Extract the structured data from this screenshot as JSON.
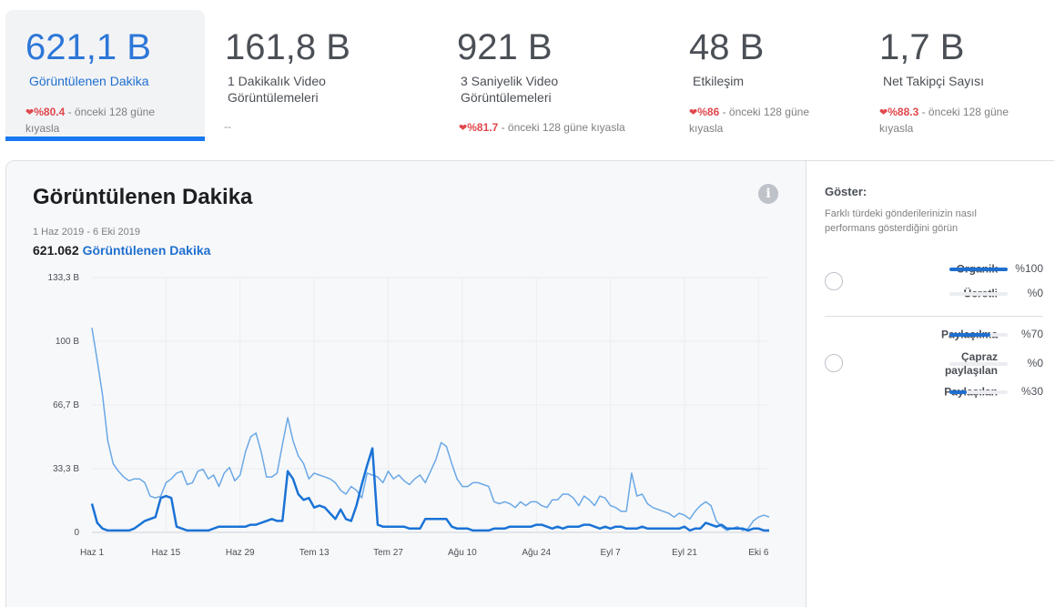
{
  "metrics": [
    {
      "value": "621,1 B",
      "label": "Görüntülenen Dakika",
      "pct": "%80.4",
      "suffix": " - önceki 128 güne kıyasla",
      "active": true
    },
    {
      "value": "161,8 B",
      "label": "1 Dakikalık Video Görüntülemeleri",
      "dash": "--"
    },
    {
      "value": "921 B",
      "label": "3 Saniyelik Video Görüntülemeleri",
      "pct": "%81.7",
      "suffix": " - önceki 128 güne kıyasla"
    },
    {
      "value": "48 B",
      "label": "Etkileşim",
      "pct": "%86",
      "suffix": " - önceki 128 güne kıyasla"
    },
    {
      "value": "1,7 B",
      "label": "Net Takipçi Sayısı",
      "pct": "%88.3",
      "suffix": " - önceki 128 güne kıyasla"
    }
  ],
  "chart_panel": {
    "title": "Görüntülenen Dakika",
    "info_icon": "info-icon",
    "date_range": "1 Haz 2019 - 6 Eki 2019",
    "total_value": "621.062",
    "total_label": "Görüntülenen Dakika"
  },
  "side_panel": {
    "title": "Göster:",
    "description": "Farklı türdeki gönderilerinizin nasıl performans gösterdiğini görün",
    "group1": [
      {
        "label": "Organik",
        "percent_text": "%100",
        "value": 1.0
      },
      {
        "label": "Ücretli",
        "percent_text": "%0",
        "value": 0.0
      }
    ],
    "group2": [
      {
        "label": "Paylaşılma",
        "percent_text": "%70",
        "value": 0.7
      },
      {
        "label": "Çapraz paylaşılan",
        "percent_text": "%0",
        "value": 0.0
      },
      {
        "label": "Paylaşılan",
        "percent_text": "%30",
        "value": 0.3
      }
    ]
  },
  "colors": {
    "accent": "#1877f2",
    "series_dark": "#1a73d6",
    "series_light": "#6aa8e6",
    "negative": "#e0474c"
  },
  "chart_data": {
    "type": "line",
    "ylim": [
      0,
      133.3
    ],
    "yticks": [
      "0",
      "33,3 B",
      "66,7 B",
      "100 B",
      "133,3 B"
    ],
    "ytick_values": [
      0,
      33.3,
      66.7,
      100,
      133.3
    ],
    "xticks": [
      "Haz 1",
      "Haz 15",
      "Haz 29",
      "Tem 13",
      "Tem 27",
      "Ağu 10",
      "Ağu 24",
      "Eyl 7",
      "Eyl 21",
      "Eki 6"
    ],
    "x_start": "2019-06-01",
    "x_end": "2019-10-06",
    "series": [
      {
        "values": [
          107,
          90,
          72,
          48,
          36,
          32,
          29,
          27,
          28,
          28,
          26,
          19,
          18,
          19,
          26,
          28,
          31,
          32,
          25,
          26,
          32,
          33,
          28,
          30,
          24,
          31,
          34,
          27,
          30,
          42,
          50,
          52,
          42,
          29,
          29,
          31,
          46,
          60,
          48,
          40,
          36,
          28,
          31,
          30,
          29,
          28,
          26,
          22,
          20,
          24,
          22,
          18,
          31,
          30,
          29,
          26,
          32,
          28,
          30,
          27,
          25,
          28,
          30,
          26,
          32,
          38,
          47,
          45,
          36,
          28,
          24,
          24,
          26,
          26,
          25,
          24,
          16,
          15,
          16,
          15,
          13,
          16,
          14,
          16,
          16,
          14,
          13,
          17,
          17,
          20,
          20,
          18,
          14,
          19,
          17,
          14,
          19,
          18,
          14,
          13,
          11,
          11,
          31,
          19,
          20,
          15,
          13,
          12,
          11,
          10,
          8,
          10,
          9,
          7,
          11,
          14,
          16,
          14,
          6,
          3,
          1,
          2,
          3,
          1,
          2,
          6,
          8,
          9,
          8
        ]
      },
      {
        "values": [
          15,
          5,
          2,
          1,
          1,
          1,
          1,
          1,
          2,
          4,
          6,
          7,
          8,
          18,
          19,
          18,
          3,
          2,
          1,
          1,
          1,
          1,
          1,
          2,
          3,
          3,
          3,
          3,
          3,
          3,
          4,
          4,
          5,
          6,
          7,
          6,
          6,
          32,
          28,
          20,
          17,
          18,
          13,
          14,
          13,
          10,
          7,
          12,
          7,
          6,
          14,
          25,
          35,
          44,
          4,
          3,
          3,
          3,
          3,
          3,
          2,
          2,
          2,
          7,
          7,
          7,
          7,
          7,
          3,
          2,
          2,
          2,
          1,
          1,
          1,
          1,
          2,
          2,
          2,
          3,
          3,
          3,
          3,
          3,
          4,
          4,
          3,
          2,
          3,
          2,
          3,
          3,
          3,
          4,
          4,
          3,
          2,
          3,
          2,
          3,
          3,
          2,
          2,
          2,
          3,
          2,
          2,
          2,
          2,
          2,
          2,
          2,
          3,
          1,
          2,
          2,
          5,
          4,
          3,
          4,
          2,
          2,
          2,
          2,
          1,
          2,
          2,
          1,
          1
        ]
      }
    ]
  }
}
